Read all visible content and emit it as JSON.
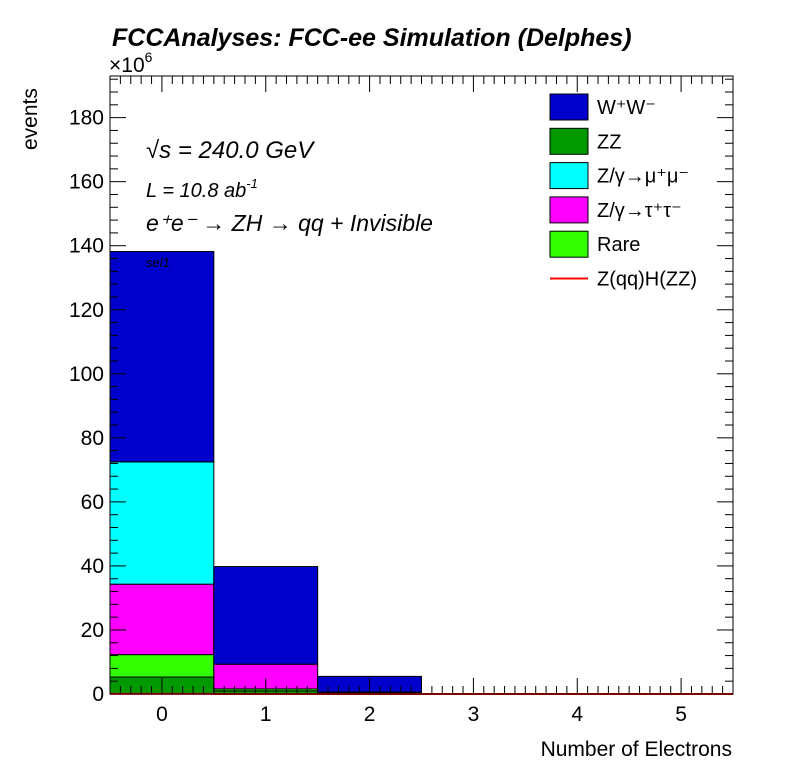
{
  "chart_data": {
    "type": "bar",
    "stacked": true,
    "title": "FCCAnalyses: FCC-ee Simulation (Delphes)",
    "xlabel": "Number of Electrons",
    "ylabel": "events",
    "y_multiplier": "×10",
    "y_multiplier_exp": "6",
    "categories": [
      "0",
      "1",
      "2",
      "3",
      "4",
      "5"
    ],
    "xlim": [
      -0.5,
      5.5
    ],
    "ylim": [
      0,
      193
    ],
    "x_ticks": [
      0,
      1,
      2,
      3,
      4,
      5
    ],
    "y_ticks": [
      0,
      20,
      40,
      60,
      80,
      100,
      120,
      140,
      160,
      180
    ],
    "series": [
      {
        "name": "ZZ",
        "color": "#009900",
        "values": [
          5.3,
          1.0,
          0.3,
          0,
          0,
          0
        ]
      },
      {
        "name": "Rare",
        "color": "#33ff00",
        "values": [
          7.0,
          0.6,
          0.2,
          0,
          0,
          0
        ]
      },
      {
        "name": "Z/γ→τ⁺τ⁻",
        "color": "#ff00ff",
        "values": [
          22.0,
          7.7,
          0.1,
          0,
          0,
          0
        ]
      },
      {
        "name": "Z/γ→μ⁺μ⁻",
        "color": "#00ffff",
        "values": [
          38.2,
          0,
          0,
          0,
          0,
          0
        ]
      },
      {
        "name": "W⁺W⁻",
        "color": "#0000cc",
        "values": [
          65.7,
          30.5,
          4.9,
          0,
          0,
          0
        ]
      }
    ],
    "signal": {
      "name": "Z(qq)H(ZZ)",
      "color": "#ff0000",
      "values": [
        0.02,
        0.01,
        0.0,
        0,
        0,
        0
      ]
    },
    "legend_position": "top-right",
    "legend_order": [
      "W⁺W⁻",
      "ZZ",
      "Z/γ→μ⁺μ⁻",
      "Z/γ→τ⁺τ⁻",
      "Rare",
      "Z(qq)H(ZZ)"
    ],
    "annotations": {
      "energy_prefix": "√s",
      "energy": " = 240.0 GeV",
      "lumi": "L = 10.8 ab",
      "lumi_exp": "-1",
      "process": "e⁺e⁻ → ZH → qq + Invisible",
      "selection": "sel1"
    }
  }
}
